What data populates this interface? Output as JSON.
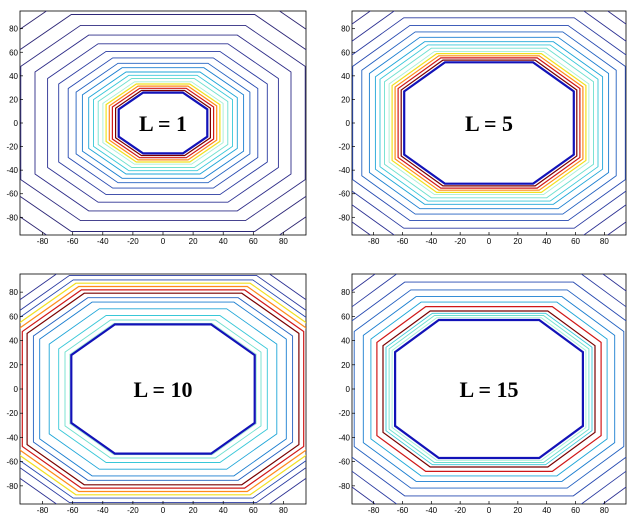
{
  "chart_data": [
    {
      "type": "contour",
      "label": "L = 1",
      "xlim": [
        -95,
        95
      ],
      "ylim": [
        -95,
        95
      ],
      "xticks": [
        -80,
        -60,
        -40,
        -20,
        0,
        20,
        40,
        60,
        80
      ],
      "yticks": [
        -80,
        -60,
        -40,
        -20,
        0,
        20,
        40,
        60,
        80
      ],
      "hole_radius": 28,
      "hot_radii": [
        30,
        32,
        34,
        36
      ],
      "cool_radii": [
        38,
        41,
        44,
        47,
        51,
        55,
        60,
        66,
        73,
        81,
        90,
        100,
        112
      ]
    },
    {
      "type": "contour",
      "label": "L = 5",
      "xlim": [
        -95,
        95
      ],
      "ylim": [
        -95,
        95
      ],
      "xticks": [
        -80,
        -60,
        -40,
        -20,
        0,
        20,
        40,
        60,
        80
      ],
      "yticks": [
        -80,
        -60,
        -40,
        -20,
        0,
        20,
        40,
        60,
        80
      ],
      "hole_radius": 56,
      "hot_radii": [
        58,
        60,
        62,
        64
      ],
      "cool_radii": [
        66,
        69,
        72,
        75,
        79,
        84,
        90,
        97,
        105,
        115
      ]
    },
    {
      "type": "contour",
      "label": "L = 10",
      "xlim": [
        -95,
        95
      ],
      "ylim": [
        -95,
        95
      ],
      "xticks": [
        -80,
        -60,
        -40,
        -20,
        0,
        20,
        40,
        60,
        80
      ],
      "yticks": [
        -80,
        -60,
        -40,
        -20,
        0,
        20,
        40,
        60,
        80
      ],
      "hole_radius": 58,
      "hot_radii": [
        86,
        89,
        92,
        95
      ],
      "cool_radii": [
        59,
        62,
        66,
        72,
        78,
        82,
        98,
        102,
        108
      ]
    },
    {
      "type": "contour",
      "label": "L = 15",
      "xlim": [
        -95,
        95
      ],
      "ylim": [
        -95,
        95
      ],
      "xticks": [
        -80,
        -60,
        -40,
        -20,
        0,
        20,
        40,
        60,
        80
      ],
      "yticks": [
        -80,
        -60,
        -40,
        -20,
        0,
        20,
        40,
        60,
        80
      ],
      "hole_radius": 62,
      "hot_radii": [
        70,
        74
      ],
      "cool_radii": [
        64,
        66,
        68,
        78,
        83,
        89,
        96,
        104,
        113,
        123
      ]
    }
  ],
  "colors": {
    "hot": [
      "#7a0000",
      "#d01818",
      "#ff8a1a",
      "#f2e020"
    ],
    "cool": [
      "#a6efd6",
      "#6fe0cf",
      "#38c8d8",
      "#1ea6d8",
      "#1a7ed0",
      "#2260c0",
      "#2648b0",
      "#2a3aa0",
      "#2c3092",
      "#2e2c88",
      "#2e2a80",
      "#2e2878",
      "#2e2670"
    ],
    "hole_border": "#1212b8"
  }
}
